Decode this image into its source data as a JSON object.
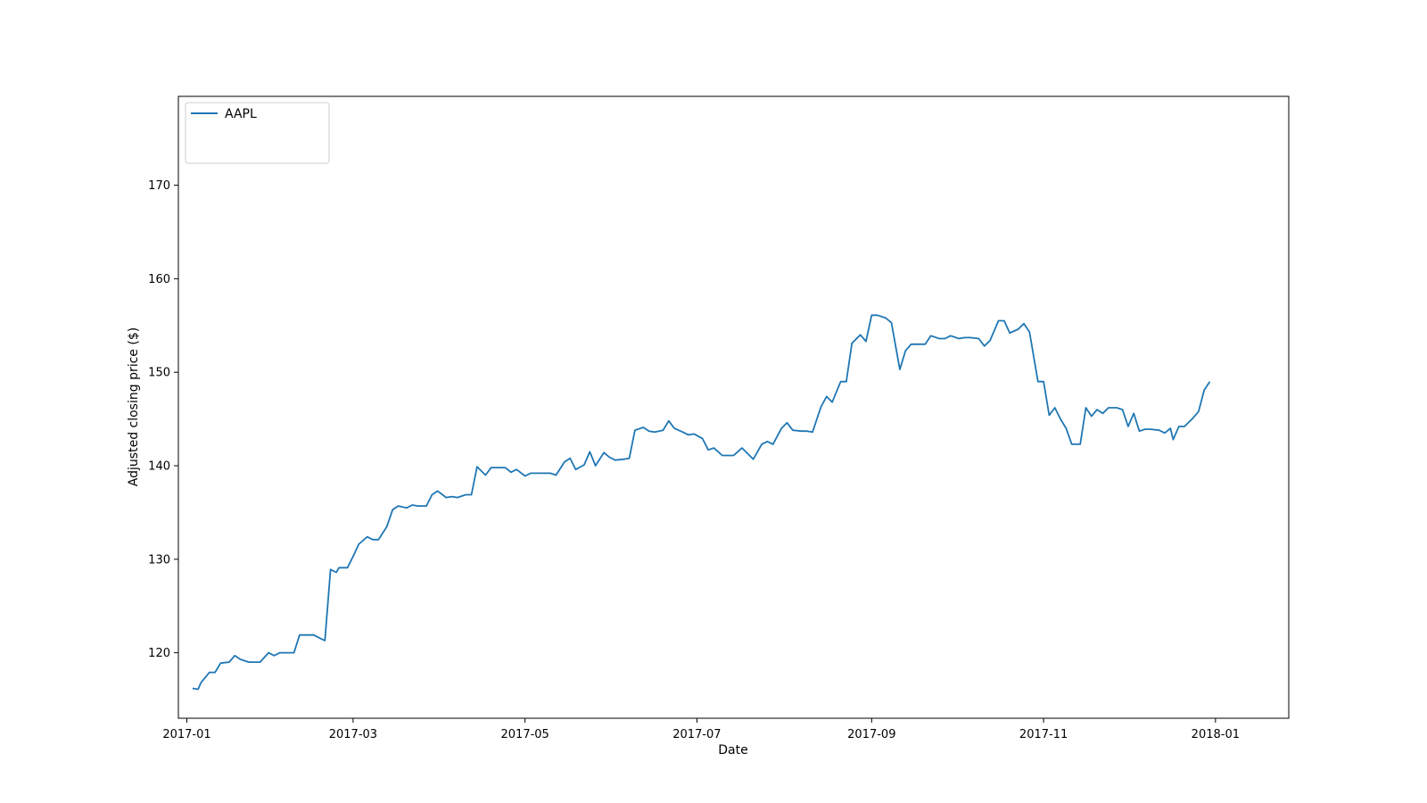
{
  "chart_data": {
    "type": "line",
    "xlabel": "Date",
    "ylabel": "Adjusted closing price ($)",
    "xlim": [
      "2016-12-29",
      "2018-01-27"
    ],
    "ylim": [
      113,
      179.5
    ],
    "x_ticks": [
      "2017-01",
      "2017-03",
      "2017-05",
      "2017-07",
      "2017-09",
      "2017-11",
      "2018-01"
    ],
    "y_ticks": [
      120,
      130,
      140,
      150,
      160,
      170
    ],
    "grid": false,
    "legend_position": "top-left",
    "series": [
      {
        "name": "AAPL",
        "color": "#1f77b4",
        "points": [
          [
            "2017-01-03",
            116.2
          ],
          [
            "2017-01-05",
            116.1
          ],
          [
            "2017-01-06",
            116.8
          ],
          [
            "2017-01-09",
            117.9
          ],
          [
            "2017-01-11",
            117.9
          ],
          [
            "2017-01-13",
            118.9
          ],
          [
            "2017-01-16",
            119.0
          ],
          [
            "2017-01-18",
            119.7
          ],
          [
            "2017-01-20",
            119.3
          ],
          [
            "2017-01-23",
            119.0
          ],
          [
            "2017-01-25",
            119.0
          ],
          [
            "2017-01-27",
            119.0
          ],
          [
            "2017-01-30",
            120.0
          ],
          [
            "2017-02-01",
            119.7
          ],
          [
            "2017-02-03",
            120.0
          ],
          [
            "2017-02-06",
            120.0
          ],
          [
            "2017-02-08",
            120.0
          ],
          [
            "2017-02-10",
            121.9
          ],
          [
            "2017-02-13",
            121.9
          ],
          [
            "2017-02-15",
            121.9
          ],
          [
            "2017-02-17",
            121.6
          ],
          [
            "2017-02-19",
            121.3
          ],
          [
            "2017-02-21",
            128.9
          ],
          [
            "2017-02-23",
            128.6
          ],
          [
            "2017-02-24",
            129.1
          ],
          [
            "2017-02-27",
            129.1
          ],
          [
            "2017-03-01",
            130.3
          ],
          [
            "2017-03-03",
            131.6
          ],
          [
            "2017-03-06",
            132.4
          ],
          [
            "2017-03-08",
            132.1
          ],
          [
            "2017-03-10",
            132.1
          ],
          [
            "2017-03-13",
            133.5
          ],
          [
            "2017-03-15",
            135.3
          ],
          [
            "2017-03-17",
            135.7
          ],
          [
            "2017-03-20",
            135.5
          ],
          [
            "2017-03-22",
            135.8
          ],
          [
            "2017-03-24",
            135.7
          ],
          [
            "2017-03-27",
            135.7
          ],
          [
            "2017-03-29",
            136.9
          ],
          [
            "2017-03-31",
            137.3
          ],
          [
            "2017-04-03",
            136.6
          ],
          [
            "2017-04-05",
            136.7
          ],
          [
            "2017-04-07",
            136.6
          ],
          [
            "2017-04-10",
            136.9
          ],
          [
            "2017-04-12",
            136.9
          ],
          [
            "2017-04-14",
            139.9
          ],
          [
            "2017-04-17",
            139.0
          ],
          [
            "2017-04-19",
            139.8
          ],
          [
            "2017-04-21",
            139.8
          ],
          [
            "2017-04-24",
            139.8
          ],
          [
            "2017-04-26",
            139.3
          ],
          [
            "2017-04-28",
            139.6
          ],
          [
            "2017-05-01",
            138.9
          ],
          [
            "2017-05-03",
            139.2
          ],
          [
            "2017-05-05",
            139.2
          ],
          [
            "2017-05-08",
            139.2
          ],
          [
            "2017-05-10",
            139.2
          ],
          [
            "2017-05-12",
            139.0
          ],
          [
            "2017-05-15",
            140.4
          ],
          [
            "2017-05-17",
            140.8
          ],
          [
            "2017-05-19",
            139.6
          ],
          [
            "2017-05-22",
            140.1
          ],
          [
            "2017-05-24",
            141.5
          ],
          [
            "2017-05-26",
            140.0
          ],
          [
            "2017-05-29",
            141.4
          ],
          [
            "2017-05-31",
            140.9
          ],
          [
            "2017-06-02",
            140.6
          ],
          [
            "2017-06-05",
            140.7
          ],
          [
            "2017-06-07",
            140.8
          ],
          [
            "2017-06-09",
            143.8
          ],
          [
            "2017-06-12",
            144.1
          ],
          [
            "2017-06-14",
            143.7
          ],
          [
            "2017-06-16",
            143.6
          ],
          [
            "2017-06-19",
            143.8
          ],
          [
            "2017-06-21",
            144.8
          ],
          [
            "2017-06-23",
            144.0
          ],
          [
            "2017-06-26",
            143.6
          ],
          [
            "2017-06-28",
            143.3
          ],
          [
            "2017-06-30",
            143.4
          ],
          [
            "2017-07-03",
            142.9
          ],
          [
            "2017-07-05",
            141.7
          ],
          [
            "2017-07-07",
            141.9
          ],
          [
            "2017-07-10",
            141.1
          ],
          [
            "2017-07-12",
            141.1
          ],
          [
            "2017-07-14",
            141.1
          ],
          [
            "2017-07-17",
            141.9
          ],
          [
            "2017-07-19",
            141.3
          ],
          [
            "2017-07-21",
            140.7
          ],
          [
            "2017-07-24",
            142.3
          ],
          [
            "2017-07-26",
            142.6
          ],
          [
            "2017-07-28",
            142.3
          ],
          [
            "2017-07-31",
            144.0
          ],
          [
            "2017-08-02",
            144.6
          ],
          [
            "2017-08-04",
            143.8
          ],
          [
            "2017-08-07",
            143.7
          ],
          [
            "2017-08-09",
            143.7
          ],
          [
            "2017-08-11",
            143.6
          ],
          [
            "2017-08-14",
            146.3
          ],
          [
            "2017-08-16",
            147.4
          ],
          [
            "2017-08-18",
            146.8
          ],
          [
            "2017-08-21",
            149.0
          ],
          [
            "2017-08-23",
            149.0
          ],
          [
            "2017-08-25",
            153.1
          ],
          [
            "2017-08-28",
            154.0
          ],
          [
            "2017-08-30",
            153.3
          ],
          [
            "2017-09-01",
            156.1
          ],
          [
            "2017-09-03",
            156.1
          ],
          [
            "2017-09-06",
            155.8
          ],
          [
            "2017-09-08",
            155.3
          ],
          [
            "2017-09-11",
            150.3
          ],
          [
            "2017-09-13",
            152.3
          ],
          [
            "2017-09-15",
            153.0
          ],
          [
            "2017-09-18",
            153.0
          ],
          [
            "2017-09-20",
            153.0
          ],
          [
            "2017-09-22",
            153.9
          ],
          [
            "2017-09-25",
            153.6
          ],
          [
            "2017-09-27",
            153.6
          ],
          [
            "2017-09-29",
            153.9
          ],
          [
            "2017-10-02",
            153.6
          ],
          [
            "2017-10-04",
            153.7
          ],
          [
            "2017-10-06",
            153.7
          ],
          [
            "2017-10-09",
            153.6
          ],
          [
            "2017-10-11",
            152.8
          ],
          [
            "2017-10-13",
            153.4
          ],
          [
            "2017-10-16",
            155.5
          ],
          [
            "2017-10-18",
            155.5
          ],
          [
            "2017-10-20",
            154.2
          ],
          [
            "2017-10-23",
            154.6
          ],
          [
            "2017-10-25",
            155.2
          ],
          [
            "2017-10-27",
            154.3
          ],
          [
            "2017-10-30",
            149.0
          ],
          [
            "2017-11-01",
            149.0
          ],
          [
            "2017-11-03",
            145.4
          ],
          [
            "2017-11-05",
            146.2
          ],
          [
            "2017-11-07",
            145.0
          ],
          [
            "2017-11-09",
            144.0
          ],
          [
            "2017-11-11",
            142.3
          ],
          [
            "2017-11-14",
            142.3
          ],
          [
            "2017-11-16",
            146.2
          ],
          [
            "2017-11-18",
            145.3
          ],
          [
            "2017-11-20",
            146.0
          ],
          [
            "2017-11-22",
            145.6
          ],
          [
            "2017-11-24",
            146.2
          ],
          [
            "2017-11-27",
            146.2
          ],
          [
            "2017-11-29",
            146.0
          ],
          [
            "2017-12-01",
            144.2
          ],
          [
            "2017-12-03",
            145.6
          ],
          [
            "2017-12-05",
            143.7
          ],
          [
            "2017-12-07",
            143.9
          ],
          [
            "2017-12-09",
            143.9
          ],
          [
            "2017-12-12",
            143.8
          ],
          [
            "2017-12-14",
            143.5
          ],
          [
            "2017-12-16",
            144.0
          ],
          [
            "2017-12-17",
            142.8
          ],
          [
            "2017-12-19",
            144.2
          ],
          [
            "2017-12-21",
            144.2
          ],
          [
            "2017-12-24",
            145.1
          ],
          [
            "2017-12-26",
            145.8
          ],
          [
            "2017-12-28",
            148.1
          ],
          [
            "2017-12-30",
            149.0
          ]
        ]
      }
    ]
  }
}
